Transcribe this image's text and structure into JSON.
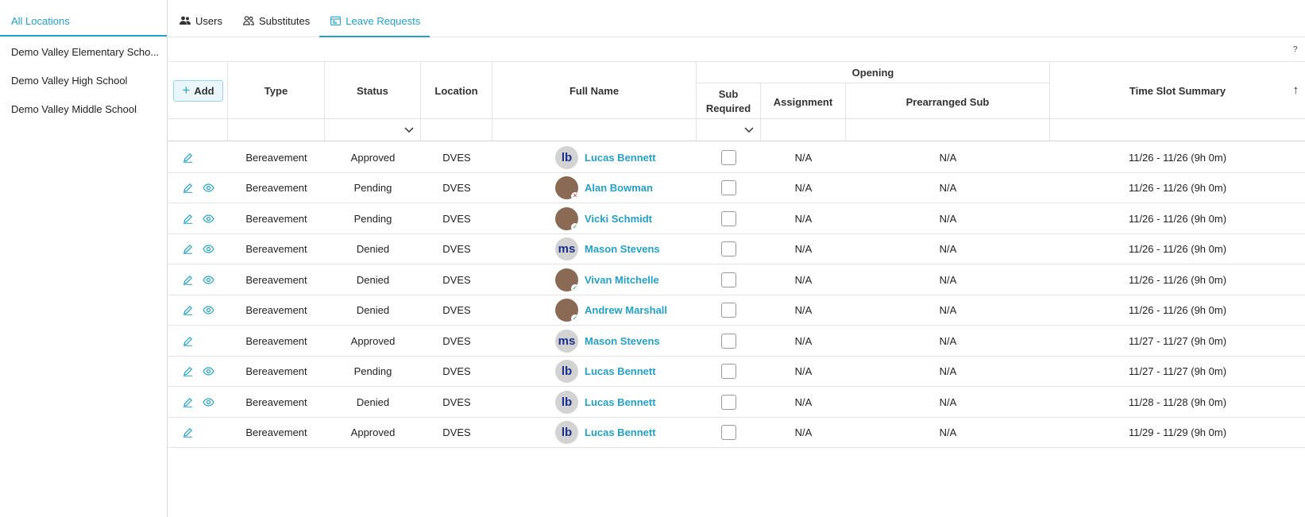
{
  "sidebar": {
    "header": "All Locations",
    "items": [
      {
        "label": "Demo Valley Elementary Scho..."
      },
      {
        "label": "Demo Valley High School"
      },
      {
        "label": "Demo Valley Middle School"
      }
    ]
  },
  "tabs": [
    {
      "label": "Users",
      "icon": "users-icon"
    },
    {
      "label": "Substitutes",
      "icon": "substitutes-icon"
    },
    {
      "label": "Leave Requests",
      "icon": "calendar-icon",
      "active": true
    }
  ],
  "help_label": "?",
  "toolbar": {
    "add_label": "Add"
  },
  "columns": {
    "type": "Type",
    "status": "Status",
    "location": "Location",
    "full_name": "Full Name",
    "opening_group": "Opening",
    "sub_required": "Sub Required",
    "assignment": "Assignment",
    "prearranged_sub": "Prearranged Sub",
    "time_slot_summary": "Time Slot Summary"
  },
  "sort_indicator": "↑",
  "colors": {
    "accent": "#26a0c4",
    "border": "#e3e3e3",
    "initials": "#1a2f8a"
  },
  "rows": [
    {
      "type": "Bereavement",
      "status": "Approved",
      "location": "DVES",
      "name": "Lucas Bennett",
      "avatar": "lb",
      "badge": "",
      "view": false,
      "sub_required": false,
      "assignment": "N/A",
      "prearranged_sub": "N/A",
      "time_slot": "11/26 - 11/26 (9h 0m)"
    },
    {
      "type": "Bereavement",
      "status": "Pending",
      "location": "DVES",
      "name": "Alan Bowman",
      "avatar": "photo",
      "badge": "no",
      "view": true,
      "sub_required": false,
      "assignment": "N/A",
      "prearranged_sub": "N/A",
      "time_slot": "11/26 - 11/26 (9h 0m)"
    },
    {
      "type": "Bereavement",
      "status": "Pending",
      "location": "DVES",
      "name": "Vicki Schmidt",
      "avatar": "photo",
      "badge": "ok",
      "view": true,
      "sub_required": false,
      "assignment": "N/A",
      "prearranged_sub": "N/A",
      "time_slot": "11/26 - 11/26 (9h 0m)"
    },
    {
      "type": "Bereavement",
      "status": "Denied",
      "location": "DVES",
      "name": "Mason Stevens",
      "avatar": "ms",
      "badge": "",
      "view": true,
      "sub_required": false,
      "assignment": "N/A",
      "prearranged_sub": "N/A",
      "time_slot": "11/26 - 11/26 (9h 0m)"
    },
    {
      "type": "Bereavement",
      "status": "Denied",
      "location": "DVES",
      "name": "Vivan Mitchelle",
      "avatar": "photo",
      "badge": "ok",
      "view": true,
      "sub_required": false,
      "assignment": "N/A",
      "prearranged_sub": "N/A",
      "time_slot": "11/26 - 11/26 (9h 0m)"
    },
    {
      "type": "Bereavement",
      "status": "Denied",
      "location": "DVES",
      "name": "Andrew Marshall",
      "avatar": "photo",
      "badge": "ok",
      "view": true,
      "sub_required": false,
      "assignment": "N/A",
      "prearranged_sub": "N/A",
      "time_slot": "11/26 - 11/26 (9h 0m)"
    },
    {
      "type": "Bereavement",
      "status": "Approved",
      "location": "DVES",
      "name": "Mason Stevens",
      "avatar": "ms",
      "badge": "",
      "view": false,
      "sub_required": false,
      "assignment": "N/A",
      "prearranged_sub": "N/A",
      "time_slot": "11/27 - 11/27 (9h 0m)"
    },
    {
      "type": "Bereavement",
      "status": "Pending",
      "location": "DVES",
      "name": "Lucas Bennett",
      "avatar": "lb",
      "badge": "",
      "view": true,
      "sub_required": false,
      "assignment": "N/A",
      "prearranged_sub": "N/A",
      "time_slot": "11/27 - 11/27 (9h 0m)"
    },
    {
      "type": "Bereavement",
      "status": "Denied",
      "location": "DVES",
      "name": "Lucas Bennett",
      "avatar": "lb",
      "badge": "",
      "view": true,
      "sub_required": false,
      "assignment": "N/A",
      "prearranged_sub": "N/A",
      "time_slot": "11/28 - 11/28 (9h 0m)"
    },
    {
      "type": "Bereavement",
      "status": "Approved",
      "location": "DVES",
      "name": "Lucas Bennett",
      "avatar": "lb",
      "badge": "",
      "view": false,
      "sub_required": false,
      "assignment": "N/A",
      "prearranged_sub": "N/A",
      "time_slot": "11/29 - 11/29 (9h 0m)"
    }
  ]
}
